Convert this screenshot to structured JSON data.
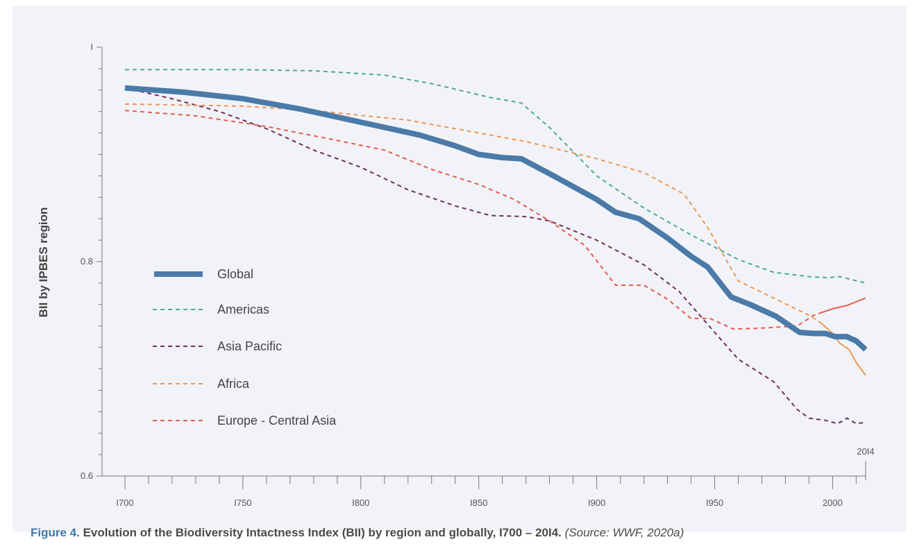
{
  "chart_data": {
    "type": "line",
    "ylabel": "BII by IPBES region",
    "xlim": [
      1700,
      2014
    ],
    "ylim": [
      0.6,
      1.0
    ],
    "y_ticks": [
      0.6,
      0.8,
      1.0
    ],
    "y_tick_labels": [
      "0.6",
      "0.8",
      "I"
    ],
    "x_ticks": [
      1700,
      1750,
      1800,
      1850,
      1900,
      1950,
      2000
    ],
    "x_tick_labels": [
      "I700",
      "I750",
      "I800",
      "I850",
      "I900",
      "I950",
      "2000"
    ],
    "end_label": "20I4",
    "grid": false,
    "legend_position": "left",
    "series": [
      {
        "name": "Global",
        "color": "#4a7aa8",
        "style": "solid",
        "x": [
          1700,
          1725,
          1750,
          1775,
          1800,
          1825,
          1840,
          1850,
          1860,
          1868,
          1880,
          1900,
          1908,
          1918,
          1930,
          1940,
          1947,
          1957,
          1965,
          1976,
          1986,
          1992,
          1997,
          2001,
          2006,
          2010,
          2014
        ],
        "y": [
          0.962,
          0.958,
          0.952,
          0.942,
          0.93,
          0.918,
          0.908,
          0.9,
          0.897,
          0.896,
          0.882,
          0.858,
          0.846,
          0.84,
          0.822,
          0.805,
          0.795,
          0.767,
          0.76,
          0.749,
          0.734,
          0.733,
          0.733,
          0.73,
          0.73,
          0.726,
          0.718
        ]
      },
      {
        "name": "Americas",
        "color": "#4ba996",
        "style": "dashed",
        "x": [
          1700,
          1750,
          1780,
          1810,
          1830,
          1855,
          1868,
          1880,
          1900,
          1920,
          1940,
          1960,
          1975,
          1990,
          1998,
          2003,
          2014
        ],
        "y": [
          0.979,
          0.979,
          0.978,
          0.974,
          0.966,
          0.953,
          0.948,
          0.925,
          0.88,
          0.85,
          0.825,
          0.802,
          0.79,
          0.786,
          0.785,
          0.786,
          0.78
        ]
      },
      {
        "name": "Asia Pacific",
        "color": "#6e2d5c",
        "style": "dashed",
        "x": [
          1700,
          1720,
          1740,
          1760,
          1780,
          1800,
          1820,
          1840,
          1855,
          1870,
          1880,
          1900,
          1920,
          1935,
          1950,
          1960,
          1975,
          1985,
          1990,
          1997,
          2002,
          2004,
          2006,
          2010,
          2014
        ],
        "y": [
          0.962,
          0.952,
          0.94,
          0.924,
          0.904,
          0.888,
          0.867,
          0.852,
          0.843,
          0.842,
          0.838,
          0.82,
          0.797,
          0.772,
          0.734,
          0.709,
          0.688,
          0.662,
          0.654,
          0.652,
          0.649,
          0.651,
          0.654,
          0.649,
          0.65
        ]
      },
      {
        "name": "Africa",
        "color": "#ec9652",
        "style": "dashed-then-solid",
        "solid_from": 1995,
        "x": [
          1700,
          1750,
          1780,
          1820,
          1850,
          1870,
          1900,
          1920,
          1937,
          1947,
          1960,
          1975,
          1990,
          1995,
          2000,
          2003,
          2007,
          2010,
          2014
        ],
        "y": [
          0.947,
          0.945,
          0.941,
          0.932,
          0.92,
          0.912,
          0.896,
          0.883,
          0.863,
          0.832,
          0.782,
          0.766,
          0.75,
          0.743,
          0.733,
          0.724,
          0.718,
          0.706,
          0.694
        ]
      },
      {
        "name": "Europe - Central Asia",
        "color": "#e55a4a",
        "style": "dashed-then-solid",
        "solid_from": 1995,
        "x": [
          1700,
          1730,
          1760,
          1790,
          1810,
          1830,
          1850,
          1865,
          1880,
          1895,
          1908,
          1920,
          1930,
          1940,
          1948,
          1958,
          1970,
          1985,
          1992,
          2000,
          2006,
          2014
        ],
        "y": [
          0.941,
          0.936,
          0.926,
          0.913,
          0.904,
          0.886,
          0.872,
          0.858,
          0.838,
          0.815,
          0.778,
          0.778,
          0.765,
          0.747,
          0.747,
          0.737,
          0.738,
          0.74,
          0.75,
          0.756,
          0.759,
          0.766
        ]
      }
    ]
  },
  "caption": {
    "figure": "Figure 4.",
    "title": "Evolution of the Biodiversity Intactness Index (BII) by region and globally, I700 – 20I4.",
    "source": "(Source: WWF, 2020a)"
  }
}
